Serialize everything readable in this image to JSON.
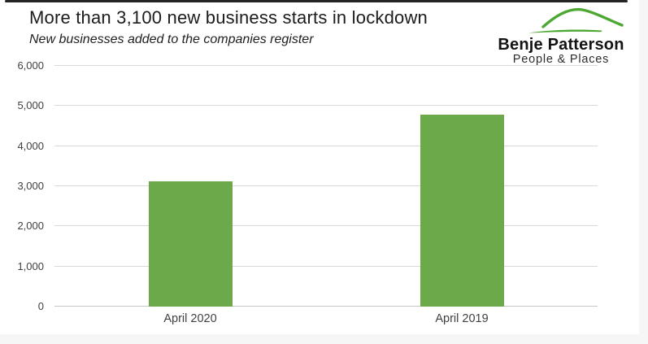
{
  "header": {
    "title": "More than 3,100 new business starts in lockdown",
    "subtitle": "New businesses added to the companies register"
  },
  "logo": {
    "name": "Benje Patterson",
    "tagline": "People & Places"
  },
  "colors": {
    "bar_green": "#6ca94a",
    "logo_green": "#4ca832",
    "gridline": "#d9d9d9",
    "zero_line": "#c6c6c6",
    "tick_text": "#3f3f3f",
    "title_text": "#1c1c1c",
    "top_rule": "#242424",
    "page_margin": "#f6f6f6"
  },
  "chart_data": {
    "type": "bar",
    "title": "More than 3,100 new business starts in lockdown",
    "subtitle": "New businesses added to the companies register",
    "categories": [
      "April 2020",
      "April 2019"
    ],
    "values": [
      3120,
      4790
    ],
    "xlabel": "",
    "ylabel": "",
    "ylim": [
      0,
      6000
    ],
    "ytick_values": [
      0,
      1000,
      2000,
      3000,
      4000,
      5000,
      6000
    ],
    "ytick_labels": [
      "0",
      "1,000",
      "2,000",
      "3,000",
      "4,000",
      "5,000",
      "6,000"
    ],
    "grid": "horizontal",
    "legend": "none",
    "bar_color": "#6ca94a"
  }
}
